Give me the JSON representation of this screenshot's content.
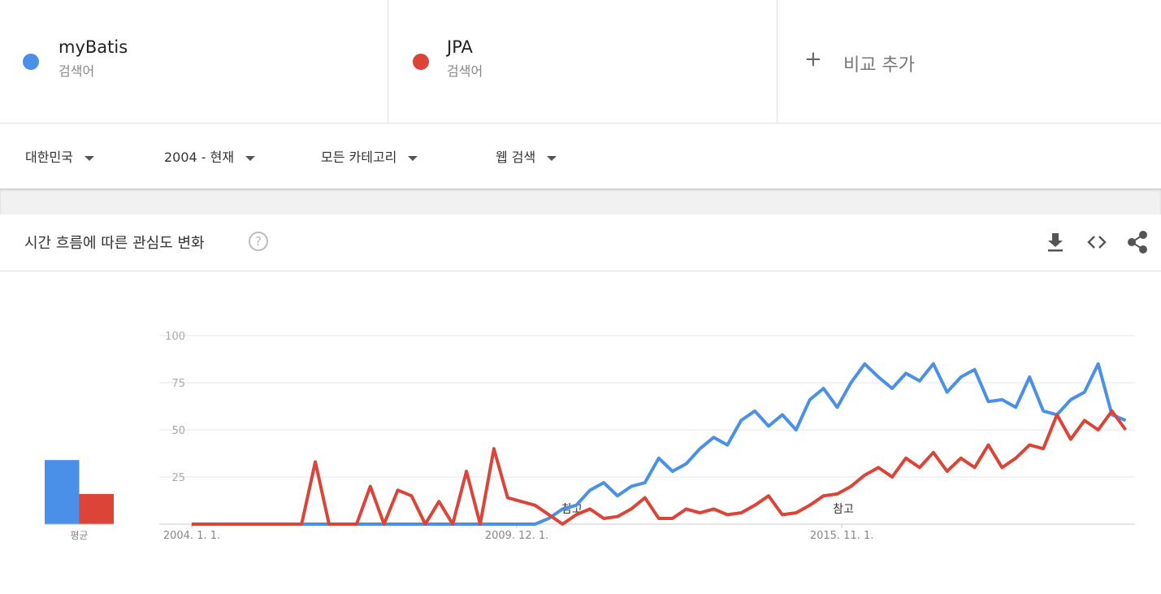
{
  "ui": {
    "term_captions": [
      "검색어",
      "검색어"
    ],
    "add_compare": "비교 추가",
    "filters": [
      "대한민국",
      "2004 - 현재",
      "모든 카테고리",
      "웹 검색"
    ]
  },
  "chart_data": [
    {
      "type": "line",
      "title": "시간 흐름에 따른 관심도 변화",
      "x": [
        2004,
        2004.25,
        2004.5,
        2004.75,
        2005,
        2005.25,
        2005.5,
        2005.75,
        2006,
        2006.25,
        2006.5,
        2006.75,
        2007,
        2007.25,
        2007.5,
        2007.75,
        2008,
        2008.25,
        2008.5,
        2008.75,
        2009,
        2009.25,
        2009.5,
        2009.75,
        2010,
        2010.25,
        2010.5,
        2010.75,
        2011,
        2011.25,
        2011.5,
        2011.75,
        2012,
        2012.25,
        2012.5,
        2012.75,
        2013,
        2013.25,
        2013.5,
        2013.75,
        2014,
        2014.25,
        2014.5,
        2014.75,
        2015,
        2015.25,
        2015.5,
        2015.75,
        2016,
        2016.25,
        2016.5,
        2016.75,
        2017,
        2017.25,
        2017.5,
        2017.75,
        2018,
        2018.25,
        2018.5,
        2018.75,
        2019,
        2019.25,
        2019.5,
        2019.75,
        2020,
        2020.25,
        2020.5,
        2020.75,
        2021
      ],
      "series": [
        {
          "name": "myBatis",
          "color": "#4a90e8",
          "values": [
            0,
            0,
            0,
            0,
            0,
            0,
            0,
            0,
            0,
            0,
            0,
            0,
            0,
            0,
            0,
            0,
            0,
            0,
            0,
            0,
            0,
            0,
            0,
            0,
            0,
            0,
            3,
            8,
            10,
            18,
            22,
            15,
            20,
            22,
            35,
            28,
            32,
            40,
            46,
            42,
            55,
            60,
            52,
            58,
            50,
            66,
            72,
            62,
            75,
            85,
            78,
            72,
            80,
            76,
            85,
            70,
            78,
            82,
            65,
            66,
            62,
            78,
            60,
            58,
            66,
            70,
            85,
            58,
            55
          ]
        },
        {
          "name": "JPA",
          "color": "#db4437",
          "values": [
            0,
            0,
            0,
            0,
            0,
            0,
            0,
            0,
            0,
            33,
            0,
            0,
            0,
            20,
            0,
            18,
            15,
            0,
            12,
            0,
            28,
            0,
            40,
            14,
            12,
            10,
            5,
            0,
            5,
            8,
            3,
            4,
            8,
            14,
            3,
            3,
            8,
            6,
            8,
            5,
            6,
            10,
            15,
            5,
            6,
            10,
            15,
            16,
            20,
            26,
            30,
            25,
            35,
            30,
            38,
            28,
            35,
            30,
            42,
            30,
            35,
            42,
            40,
            58,
            45,
            55,
            50,
            60,
            50
          ]
        }
      ],
      "xlim": [
        2004,
        2021.17
      ],
      "xticks": [
        {
          "value": 2004,
          "label": "2004. 1. 1."
        },
        {
          "value": 2009.917,
          "label": "2009. 12. 1."
        },
        {
          "value": 2015.833,
          "label": "2015. 11. 1."
        }
      ],
      "ylim": [
        0,
        100
      ],
      "yticks": [
        25,
        50,
        75,
        100
      ],
      "grid": true,
      "annotations": [
        "참고",
        "참고"
      ]
    },
    {
      "type": "bar",
      "categories": [
        "평균"
      ],
      "ylim": [
        0,
        100
      ],
      "series": [
        {
          "color": "#4a90e8",
          "values": [
            34
          ]
        },
        {
          "color": "#db4437",
          "values": [
            16
          ]
        }
      ]
    }
  ]
}
